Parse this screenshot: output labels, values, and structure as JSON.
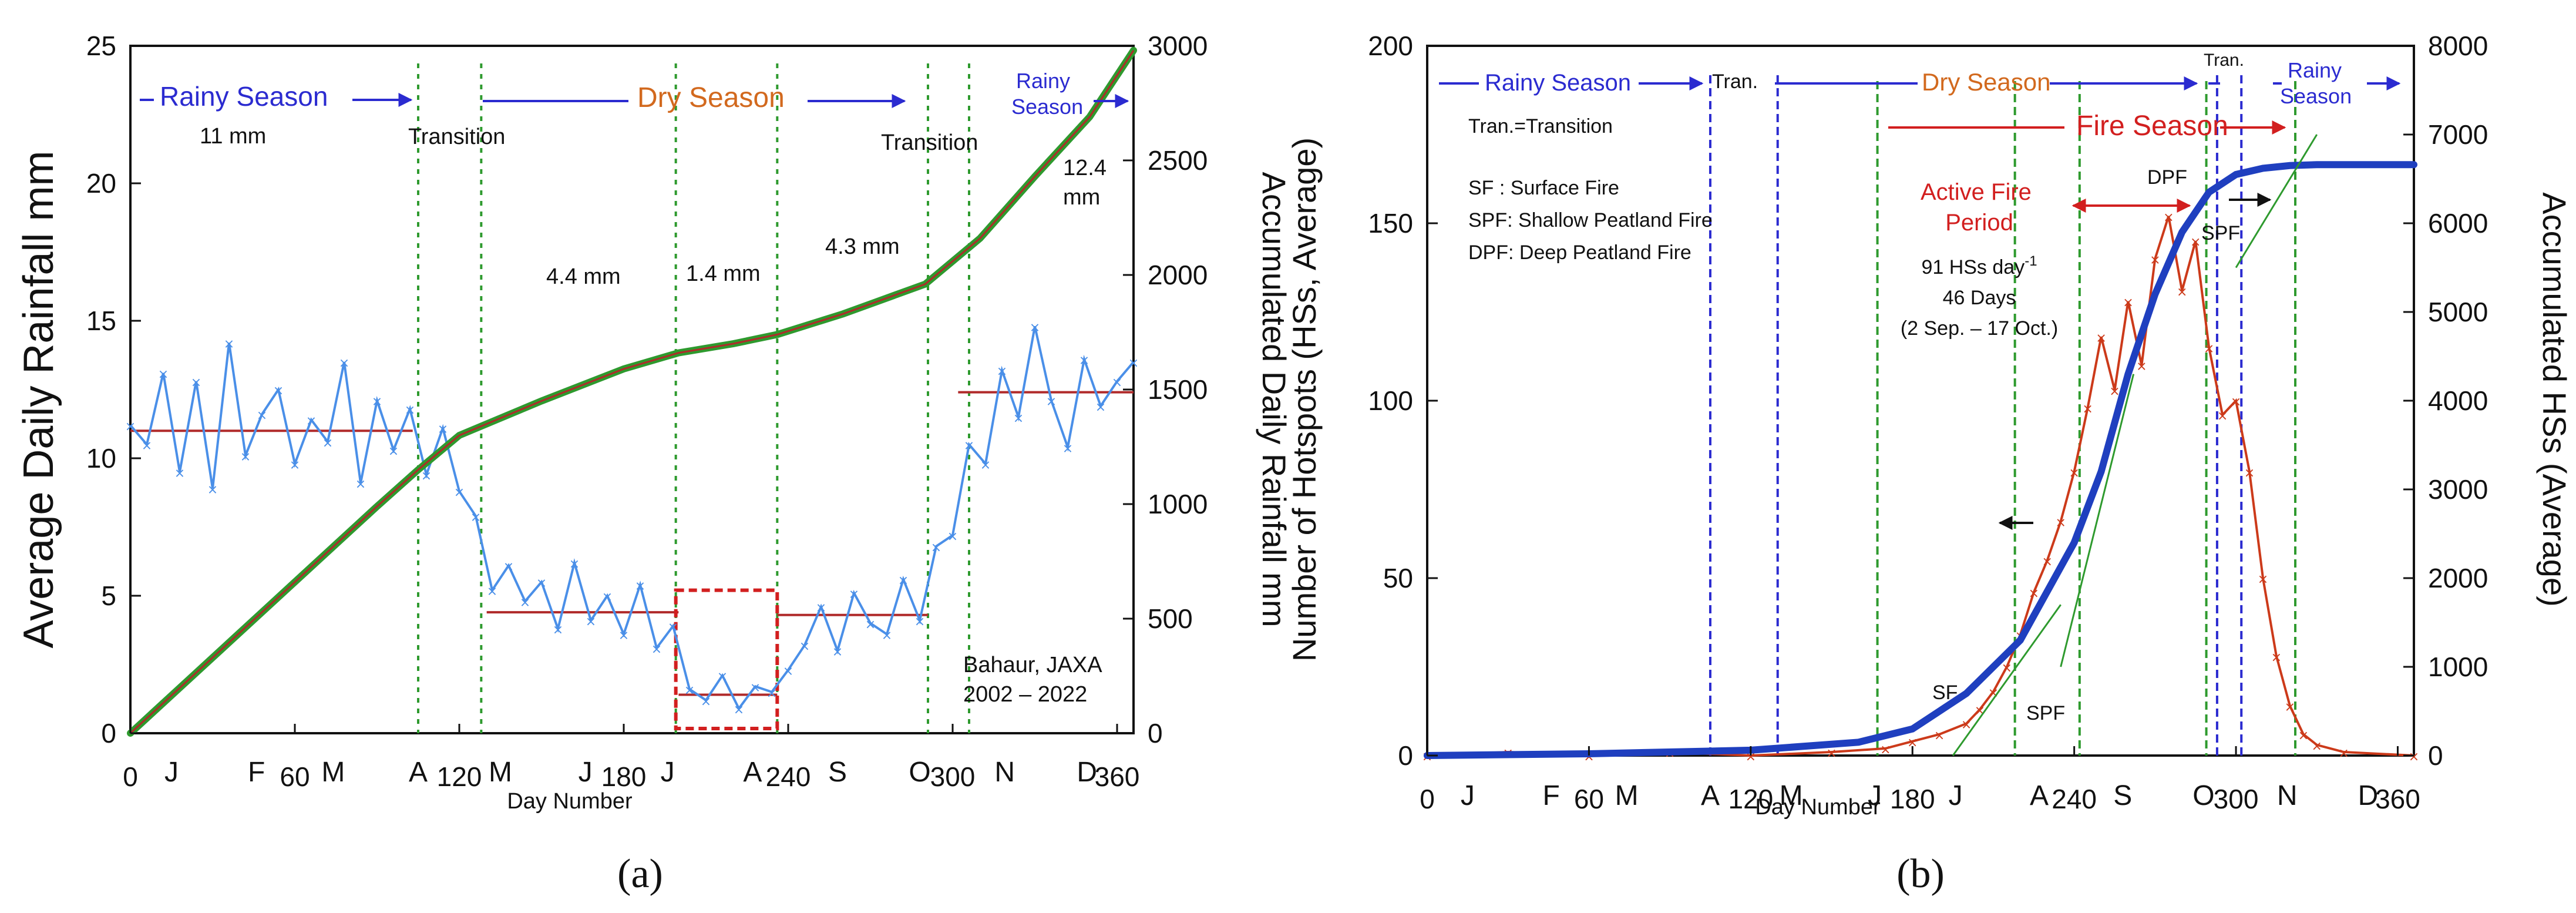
{
  "chart_data": [
    {
      "type": "line",
      "panel": "a",
      "caption": "(a)",
      "x_label": "Day Number",
      "x_range": [
        0,
        366
      ],
      "x_ticks": [
        "0",
        "60",
        "120",
        "180",
        "240",
        "300",
        "360"
      ],
      "x_tick_values": [
        0,
        60,
        120,
        180,
        240,
        300,
        360
      ],
      "month_labels": [
        "J",
        "F",
        "M",
        "A",
        "M",
        "J",
        "J",
        "A",
        "S",
        "O",
        "N",
        "D"
      ],
      "month_positions": [
        15,
        46,
        74,
        105,
        135,
        166,
        196,
        227,
        258,
        288,
        319,
        349
      ],
      "y_left_label": "Average Daily Rainfall   mm",
      "y_left_range": [
        0,
        25
      ],
      "y_left_ticks": [
        "0",
        "5",
        "10",
        "15",
        "20",
        "25"
      ],
      "y_right_label": "Accumulated Daily Rainfall   mm",
      "y_right_range": [
        0,
        3000
      ],
      "y_right_ticks": [
        "0",
        "500",
        "1000",
        "1500",
        "2000",
        "2500",
        "3000"
      ],
      "season_labels": {
        "rainy_season": "Rainy Season",
        "dry_season": "Dry Season",
        "rainy_season_2": "Rainy\nSeason",
        "transition_1": "Transition",
        "transition_2": "Transition"
      },
      "mean_annotations": [
        "11 mm",
        "4.4 mm",
        "1.4 mm",
        "4.3 mm",
        "12.4\nmm"
      ],
      "source_note": "Bahaur, JAXA\n2002 – 2022",
      "boundary_days": [
        105,
        128,
        199,
        236,
        291,
        306
      ],
      "period_means": [
        {
          "start": 0,
          "end": 103,
          "mean": 11.0
        },
        {
          "start": 130,
          "end": 200,
          "mean": 4.4
        },
        {
          "start": 200,
          "end": 236,
          "mean": 1.4
        },
        {
          "start": 236,
          "end": 291,
          "mean": 4.3
        },
        {
          "start": 302,
          "end": 366,
          "mean": 12.4
        }
      ],
      "series": [
        {
          "name": "Average daily rainfall (mm)",
          "axis": "left",
          "color": "#4a8fe8",
          "x": [
            0,
            6,
            12,
            18,
            24,
            30,
            36,
            42,
            48,
            54,
            60,
            66,
            72,
            78,
            84,
            90,
            96,
            102,
            108,
            114,
            120,
            126,
            132,
            138,
            144,
            150,
            156,
            162,
            168,
            174,
            180,
            186,
            192,
            198,
            204,
            210,
            216,
            222,
            228,
            234,
            240,
            246,
            252,
            258,
            264,
            270,
            276,
            282,
            288,
            294,
            300,
            306,
            312,
            318,
            324,
            330,
            336,
            342,
            348,
            354,
            360,
            366
          ],
          "values": [
            11.2,
            10.5,
            13.1,
            9.5,
            12.8,
            8.9,
            14.2,
            10.1,
            11.6,
            12.5,
            9.8,
            11.4,
            10.6,
            13.5,
            9.1,
            12.1,
            10.3,
            11.8,
            9.4,
            11.1,
            8.8,
            7.9,
            5.2,
            6.1,
            4.8,
            5.5,
            3.8,
            6.2,
            4.1,
            5.0,
            3.6,
            5.4,
            3.1,
            3.9,
            1.6,
            1.2,
            2.1,
            0.9,
            1.7,
            1.5,
            2.3,
            3.2,
            4.6,
            3.0,
            5.1,
            4.0,
            3.6,
            5.6,
            4.1,
            6.8,
            7.2,
            10.5,
            9.8,
            13.2,
            11.5,
            14.8,
            12.1,
            10.4,
            13.6,
            11.9,
            12.8,
            13.5
          ]
        },
        {
          "name": "Accumulated daily rainfall (mm)",
          "axis": "right",
          "color": "#2e9a2e",
          "x": [
            0,
            30,
            60,
            90,
            105,
            120,
            150,
            180,
            200,
            220,
            236,
            260,
            290,
            310,
            330,
            350,
            366
          ],
          "values": [
            0,
            330,
            660,
            990,
            1150,
            1300,
            1450,
            1590,
            1660,
            1700,
            1740,
            1830,
            1960,
            2160,
            2430,
            2690,
            2980
          ]
        }
      ],
      "highlight_box": {
        "x_range": [
          199,
          236
        ],
        "y_range": [
          0,
          5.2
        ]
      }
    },
    {
      "type": "line",
      "panel": "b",
      "caption": "(b)",
      "x_label": "Day Number",
      "x_range": [
        0,
        366
      ],
      "x_ticks": [
        "0",
        "60",
        "120",
        "180",
        "240",
        "300",
        "360"
      ],
      "x_tick_values": [
        0,
        60,
        120,
        180,
        240,
        300,
        360
      ],
      "month_labels": [
        "J",
        "F",
        "M",
        "A",
        "M",
        "J",
        "J",
        "A",
        "S",
        "O",
        "N",
        "D"
      ],
      "month_positions": [
        15,
        46,
        74,
        105,
        135,
        166,
        196,
        227,
        258,
        288,
        319,
        349
      ],
      "y_left_label": "Number of Hotspots (HSs, Average)",
      "y_left_range": [
        0,
        200
      ],
      "y_left_ticks": [
        "0",
        "50",
        "100",
        "150",
        "200"
      ],
      "y_right_label": "Accumulated HSs (Average)",
      "y_right_range": [
        0,
        8000
      ],
      "y_right_ticks": [
        "0",
        "1000",
        "2000",
        "3000",
        "4000",
        "5000",
        "6000",
        "7000",
        "8000"
      ],
      "season_labels": {
        "rainy_season": "Rainy Season",
        "tran_1": "Tran.",
        "dry_season": "Dry Season",
        "tran_2": "Tran.",
        "rainy_season_2": "Rainy\nSeason",
        "fire_season": "Fire Season"
      },
      "legend_text": [
        "Tran.=Transition",
        "SF : Surface Fire",
        "SPF: Shallow Peatland Fire",
        "DPF: Deep Peatland Fire"
      ],
      "active_fire": {
        "title": "Active Fire\nPeriod",
        "dpf_label": "DPF",
        "rate": "91 HSs day",
        "rate_exp": "-1",
        "days": "46 Days",
        "dates": "(2 Sep. – 17 Oct.)"
      },
      "curve_labels": [
        "SF",
        "SPF",
        "SPF"
      ],
      "boundary_days_blue": [
        105,
        130,
        293,
        302
      ],
      "boundary_days_green": [
        167,
        218,
        242,
        289,
        322
      ],
      "series": [
        {
          "name": "Number of hotspots (average)",
          "axis": "left",
          "color": "#cc3a1a",
          "x": [
            0,
            30,
            60,
            90,
            120,
            150,
            170,
            180,
            190,
            200,
            205,
            210,
            215,
            220,
            225,
            230,
            235,
            240,
            245,
            250,
            255,
            260,
            265,
            270,
            275,
            280,
            285,
            290,
            295,
            300,
            305,
            310,
            315,
            320,
            325,
            330,
            340,
            366
          ],
          "values": [
            0,
            1,
            0,
            1,
            0,
            1,
            2,
            4,
            6,
            9,
            13,
            18,
            25,
            34,
            46,
            55,
            66,
            80,
            98,
            118,
            103,
            128,
            110,
            140,
            152,
            131,
            145,
            115,
            96,
            100,
            80,
            50,
            28,
            14,
            6,
            3,
            1,
            0
          ]
        },
        {
          "name": "Accumulated hotspots (average)",
          "axis": "right",
          "color": "#1f3fbf",
          "x": [
            0,
            60,
            120,
            160,
            180,
            200,
            220,
            240,
            250,
            260,
            270,
            280,
            290,
            300,
            310,
            320,
            330,
            366
          ],
          "values": [
            0,
            20,
            60,
            150,
            300,
            700,
            1300,
            2400,
            3200,
            4300,
            5200,
            5900,
            6350,
            6550,
            6620,
            6650,
            6660,
            6660
          ]
        }
      ]
    }
  ]
}
